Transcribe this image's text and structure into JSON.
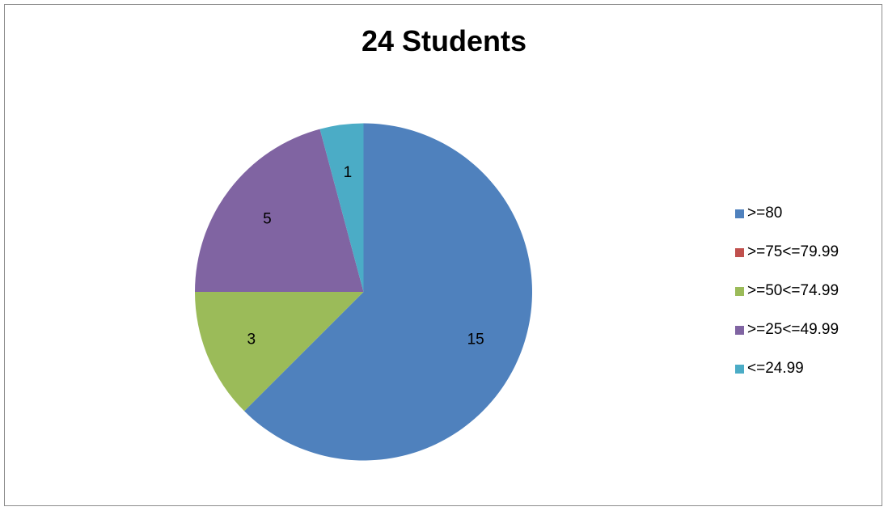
{
  "chart_data": {
    "type": "pie",
    "title": "24 Students",
    "categories": [
      ">=80",
      ">=75<=79.99",
      ">=50<=74.99",
      ">=25<=49.99",
      "<=24.99"
    ],
    "values": [
      15,
      0,
      3,
      5,
      1
    ],
    "data_labels": [
      "15",
      "",
      "3",
      "5",
      "1"
    ],
    "colors": [
      "#4f81bd",
      "#c0504d",
      "#9bbb59",
      "#8064a2",
      "#4bacc6"
    ],
    "legend_position": "right"
  }
}
